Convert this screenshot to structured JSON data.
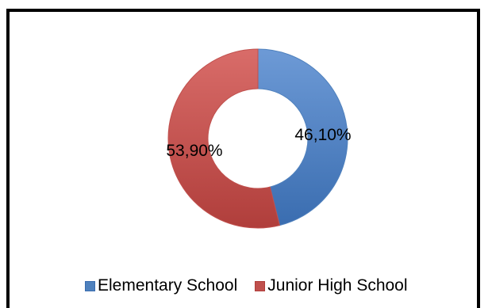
{
  "chart_data": {
    "type": "pie",
    "variant": "donut",
    "title": "",
    "slices": [
      {
        "label": "Elementary School",
        "value": 46.1,
        "display": "46,10%",
        "color": "#4f81bd"
      },
      {
        "label": "Junior High School",
        "value": 53.9,
        "display": "53,90%",
        "color": "#c0504d"
      }
    ],
    "legend_position": "bottom",
    "border_color": "#000000"
  }
}
